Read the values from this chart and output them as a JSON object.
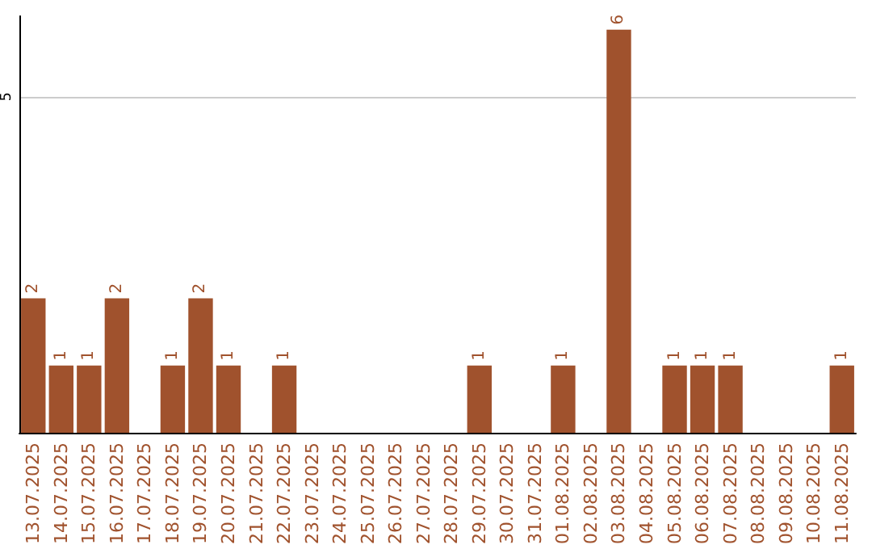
{
  "chart_data": {
    "type": "bar",
    "categories": [
      "13.07.2025",
      "14.07.2025",
      "15.07.2025",
      "16.07.2025",
      "17.07.2025",
      "18.07.2025",
      "19.07.2025",
      "20.07.2025",
      "21.07.2025",
      "22.07.2025",
      "23.07.2025",
      "24.07.2025",
      "25.07.2025",
      "26.07.2025",
      "27.07.2025",
      "28.07.2025",
      "29.07.2025",
      "30.07.2025",
      "31.07.2025",
      "01.08.2025",
      "02.08.2025",
      "03.08.2025",
      "04.08.2025",
      "05.08.2025",
      "06.08.2025",
      "07.08.2025",
      "08.08.2025",
      "09.08.2025",
      "10.08.2025",
      "11.08.2025"
    ],
    "values": [
      2,
      1,
      1,
      2,
      0,
      1,
      2,
      1,
      0,
      1,
      0,
      0,
      0,
      0,
      0,
      0,
      1,
      0,
      0,
      1,
      0,
      6,
      0,
      1,
      1,
      1,
      0,
      0,
      0,
      1
    ],
    "value_labels": [
      "2",
      "1",
      "1",
      "2",
      null,
      "1",
      "2",
      "1",
      null,
      "1",
      null,
      null,
      null,
      null,
      null,
      null,
      "1",
      null,
      null,
      "1",
      null,
      "6",
      null,
      "1",
      "1",
      "1",
      null,
      null,
      null,
      "1"
    ],
    "color": "#a0522d",
    "ylim": [
      0,
      6.2
    ],
    "yticks": [
      5
    ],
    "grid": "y"
  }
}
